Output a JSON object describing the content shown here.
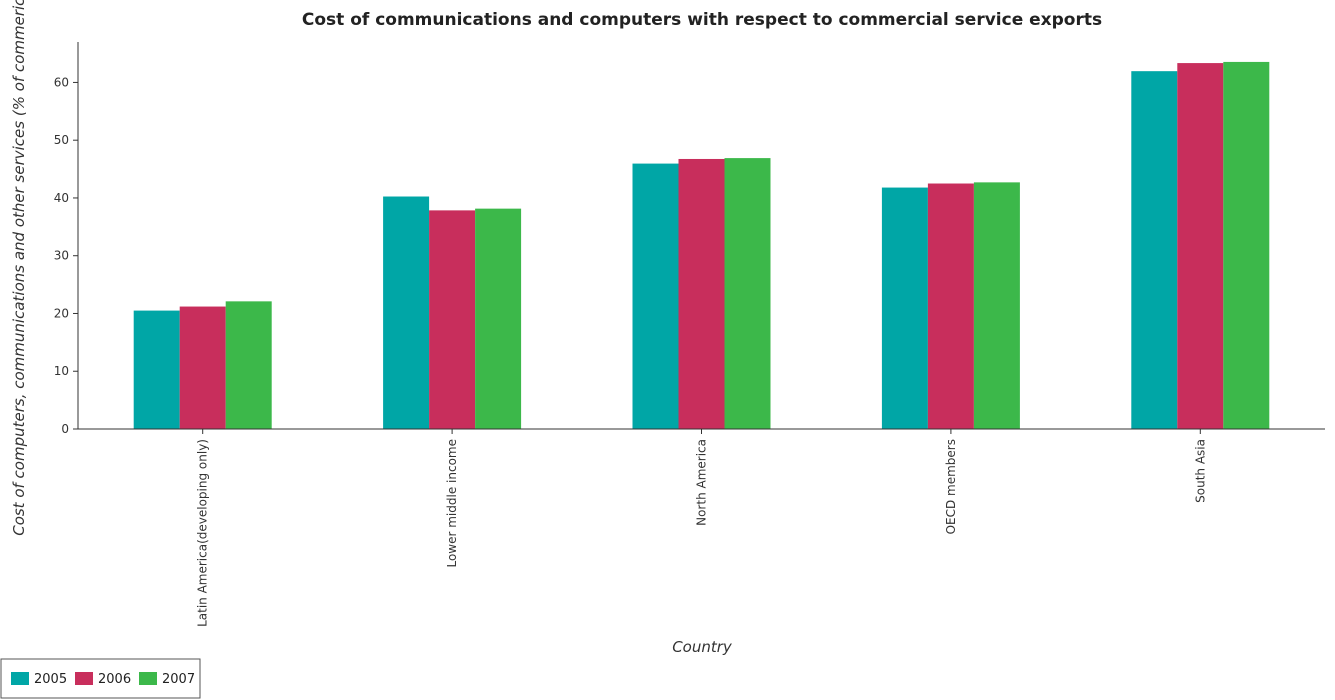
{
  "chart_data": {
    "type": "bar",
    "title": "Cost of communications and computers with respect to commercial service exports",
    "xlabel": "Country",
    "ylabel": "Cost of computers, communications and other services (% of commerical",
    "categories": [
      "Latin America(developing only)",
      "Lower middle income",
      "North America",
      "OECD members",
      "South Asia"
    ],
    "series": [
      {
        "name": "2005",
        "color": "#00a6a6",
        "values": [
          20.5,
          40.25,
          45.95,
          41.8,
          61.95
        ]
      },
      {
        "name": "2006",
        "color": "#c82e5c",
        "values": [
          21.2,
          37.85,
          46.75,
          42.5,
          63.35
        ]
      },
      {
        "name": "2007",
        "color": "#3cb84a",
        "values": [
          22.1,
          38.15,
          46.9,
          42.7,
          63.55
        ]
      }
    ],
    "ylim": [
      0,
      67
    ],
    "yticks": [
      0,
      10,
      20,
      30,
      40,
      50,
      60
    ],
    "grid": false,
    "legend": "bottom-left"
  }
}
